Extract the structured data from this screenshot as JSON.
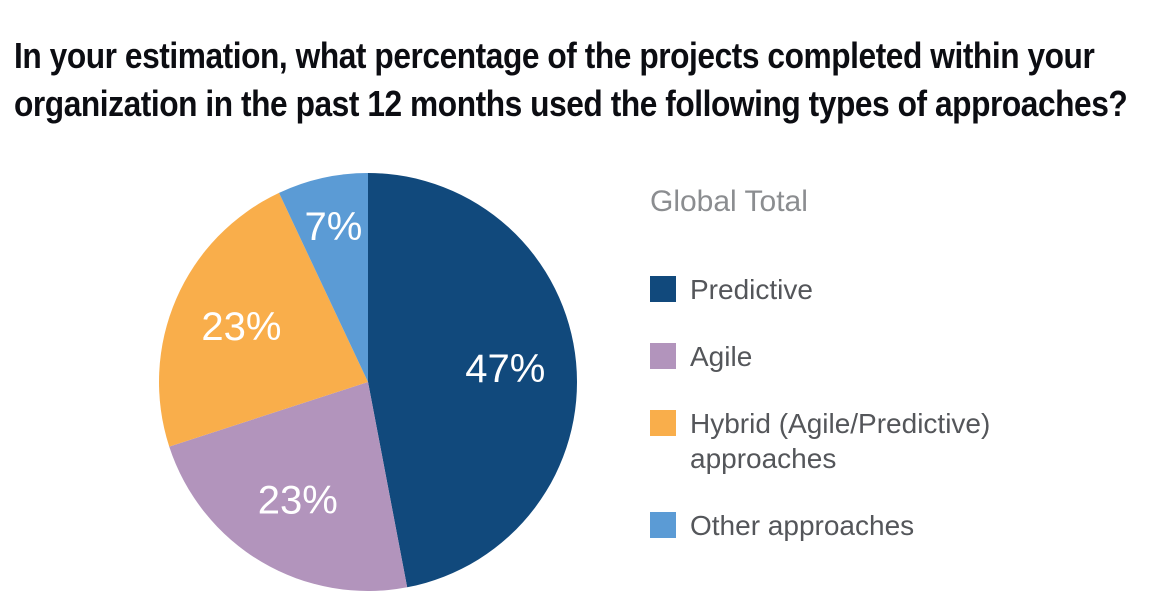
{
  "title_lines": [
    "In your estimation, what percentage of the projects completed within your",
    "organization in the past 12 months used the following types of approaches?"
  ],
  "chart_data": {
    "type": "pie",
    "title": "In your estimation, what percentage of the projects completed within your organization in the past 12 months used the following types of approaches?",
    "legend_title": "Global Total",
    "legend_position": "right",
    "start_angle_deg": 0,
    "direction": "clockwise",
    "slices": [
      {
        "id": "predictive",
        "label": "Predictive",
        "value": 47,
        "data_label": "47%",
        "color": "#11497c"
      },
      {
        "id": "agile",
        "label": "Agile",
        "value": 23,
        "data_label": "23%",
        "color": "#b294bc"
      },
      {
        "id": "hybrid",
        "label": "Hybrid (Agile/Predictive) approaches",
        "value": 23,
        "data_label": "23%",
        "color": "#f9ae4b"
      },
      {
        "id": "other",
        "label": "Other approaches",
        "value": 7,
        "data_label": "7%",
        "color": "#5b9bd5"
      }
    ]
  }
}
